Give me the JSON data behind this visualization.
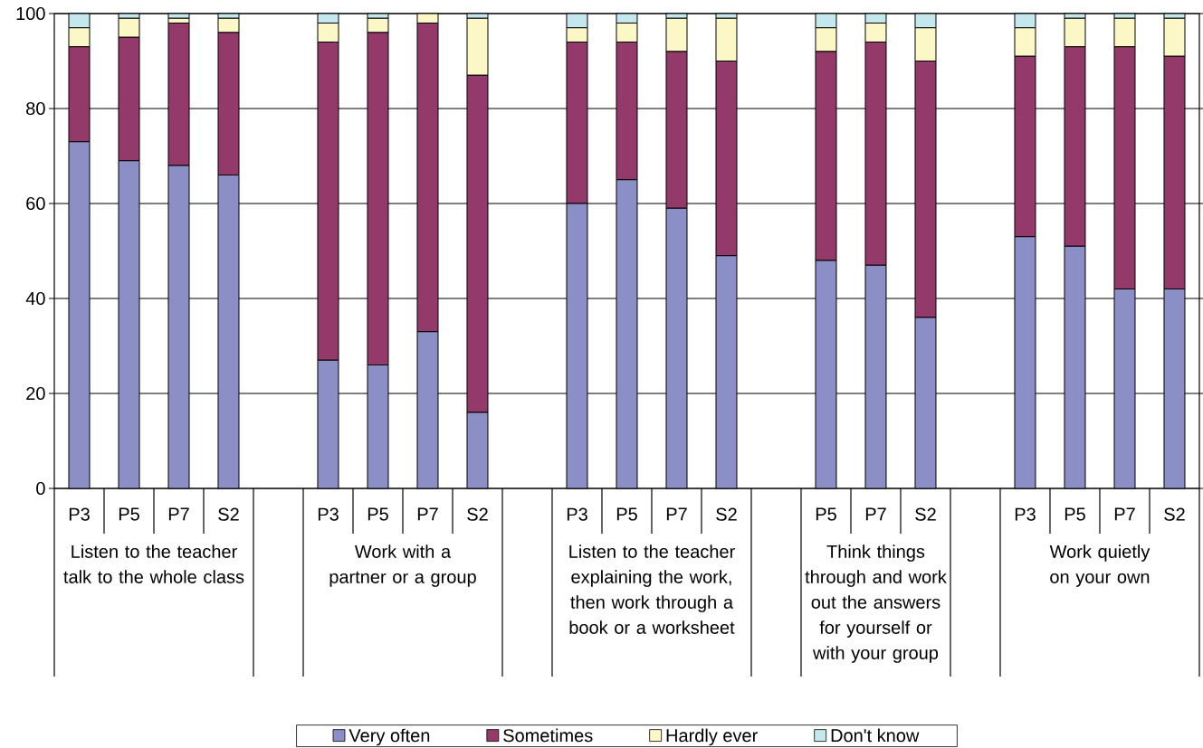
{
  "chart_data": {
    "type": "bar",
    "stacked": true,
    "categories": [
      "P3",
      "P5",
      "P7",
      "S2",
      null,
      "P3",
      "P5",
      "P7",
      "S2",
      null,
      "P3",
      "P5",
      "P7",
      "S2",
      null,
      "P5",
      "P7",
      "S2",
      null,
      "P3",
      "P5",
      "P7",
      "S2"
    ],
    "series": [
      {
        "name": "Very often",
        "color": "#8c8fc6",
        "values": [
          73,
          69,
          68,
          66,
          null,
          27,
          26,
          33,
          16,
          null,
          60,
          65,
          59,
          49,
          null,
          48,
          47,
          36,
          null,
          53,
          51,
          42,
          42
        ]
      },
      {
        "name": "Sometimes",
        "color": "#943a6b",
        "values": [
          20,
          26,
          30,
          30,
          null,
          67,
          70,
          65,
          71,
          null,
          34,
          29,
          33,
          41,
          null,
          44,
          47,
          54,
          null,
          38,
          42,
          51,
          49
        ]
      },
      {
        "name": "Hardly ever",
        "color": "#fbf7c7",
        "values": [
          4,
          4,
          1,
          3,
          null,
          4,
          3,
          2,
          12,
          null,
          3,
          4,
          7,
          9,
          null,
          5,
          4,
          7,
          null,
          6,
          6,
          6,
          8
        ]
      },
      {
        "name": "Don't know",
        "color": "#c5e8ef",
        "values": [
          3,
          1,
          1,
          1,
          null,
          2,
          1,
          0,
          1,
          null,
          3,
          2,
          1,
          1,
          null,
          3,
          2,
          3,
          null,
          3,
          1,
          1,
          1
        ]
      }
    ],
    "ylim": [
      0,
      100
    ],
    "yticks": [
      0,
      20,
      40,
      60,
      80,
      100
    ],
    "grid": "y",
    "legend": "bottom",
    "annotations": [
      "Listen to the teacher talk to the whole class",
      "Work with a partner or a group",
      "Listen to the teacher explaining the work, then work through a book or a worksheet",
      "Think things through and work out the answers for yourself or with your group",
      "Work quietly on your own"
    ]
  }
}
